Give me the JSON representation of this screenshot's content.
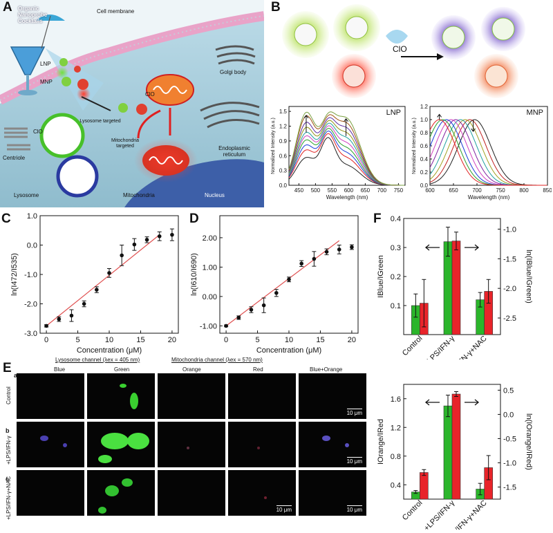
{
  "panels": {
    "A": "A",
    "B": "B",
    "C": "C",
    "D": "D",
    "Ea": "E",
    "Eb": "b",
    "Ec": "c",
    "Ea_sub": "a",
    "F": "F"
  },
  "panel_a": {
    "cocktails": "Organic\nNanoprobe\nCocktails",
    "cell_membrane": "Cell membrane",
    "golgi": "Golgi body",
    "lnp": "LNP",
    "mnp": "MNP",
    "clo1": "ClO",
    "clo2": "ClO",
    "lysosome_targeted": "Lysosome targeted",
    "mito_targeted": "Mitochondria targeted",
    "er": "Endoplasmic reticulum",
    "centriole": "Centriole",
    "lysosome": "Lysosome",
    "mitochondria": "Mitochondria",
    "nucleus": "Nucleus"
  },
  "panel_b": {
    "clo": "ClO"
  },
  "chart_data": [
    {
      "id": "B-LNP",
      "type": "line",
      "title": "LNP",
      "xlabel": "Wavelength (nm)",
      "ylabel": "Normalized Intensity (a.u.)",
      "xlim": [
        420,
        770
      ],
      "ylim": [
        0,
        1.6
      ],
      "xticks": [
        450,
        500,
        550,
        600,
        650,
        700,
        750
      ],
      "yticks": [
        0.0,
        0.3,
        0.6,
        0.9,
        1.2,
        1.5
      ],
      "series": [
        {
          "color": "#1f1f1f",
          "p472": 0.55,
          "p590": 0.4
        },
        {
          "color": "#e02020",
          "p472": 0.7,
          "p590": 0.55
        },
        {
          "color": "#1a3cd8",
          "p472": 0.8,
          "p590": 0.65
        },
        {
          "color": "#2aa02a",
          "p472": 0.9,
          "p590": 0.75
        },
        {
          "color": "#d040c0",
          "p472": 0.98,
          "p590": 0.85
        },
        {
          "color": "#20a0a0",
          "p472": 1.05,
          "p590": 0.95
        },
        {
          "color": "#909010",
          "p472": 1.15,
          "p590": 1.05
        },
        {
          "color": "#5a2aa0",
          "p472": 1.25,
          "p590": 1.15
        },
        {
          "color": "#a05010",
          "p472": 1.38,
          "p590": 1.25
        },
        {
          "color": "#7aa040",
          "p472": 1.45,
          "p590": 1.35
        }
      ]
    },
    {
      "id": "B-MNP",
      "type": "line",
      "title": "MNP",
      "xlabel": "Wavelength (nm)",
      "ylabel": "Normalized Intensity (a.u.)",
      "xlim": [
        600,
        850
      ],
      "ylim": [
        0,
        1.2
      ],
      "xticks": [
        600,
        650,
        700,
        750,
        800,
        850
      ],
      "yticks": [
        0.0,
        0.2,
        0.4,
        0.6,
        0.8,
        1.0,
        1.2
      ],
      "series": [
        {
          "color": "#1f1f1f",
          "peak": 695
        },
        {
          "color": "#c02020",
          "peak": 685
        },
        {
          "color": "#a0a020",
          "peak": 675
        },
        {
          "color": "#20a0a0",
          "peak": 665
        },
        {
          "color": "#8020a0",
          "peak": 655
        },
        {
          "color": "#d040c0",
          "peak": 645
        },
        {
          "color": "#1a3cd8",
          "peak": 635
        },
        {
          "color": "#2aa02a",
          "peak": 627
        },
        {
          "color": "#e02020",
          "peak": 620
        }
      ]
    },
    {
      "id": "C",
      "type": "scatter",
      "xlabel": "Concentration (μM)",
      "ylabel": "ln(I472/I535)",
      "xlim": [
        -1,
        21
      ],
      "ylim": [
        -3.0,
        1.0
      ],
      "xticks": [
        0,
        5,
        10,
        15,
        20
      ],
      "yticks": [
        -3.0,
        -2.0,
        -1.0,
        0.0,
        1.0
      ],
      "ytick_labels": [
        "-3.0",
        "-2.0",
        "-1.0",
        "0.0",
        "1.0"
      ],
      "fit": {
        "x": [
          0,
          18
        ],
        "y": [
          -2.75,
          0.35
        ]
      },
      "points": [
        {
          "x": 0,
          "y": -2.75,
          "err": 0.04
        },
        {
          "x": 2,
          "y": -2.52,
          "err": 0.08
        },
        {
          "x": 4,
          "y": -2.4,
          "err": 0.2
        },
        {
          "x": 6,
          "y": -2.0,
          "err": 0.1
        },
        {
          "x": 8,
          "y": -1.52,
          "err": 0.1
        },
        {
          "x": 10,
          "y": -0.95,
          "err": 0.15
        },
        {
          "x": 12,
          "y": -0.35,
          "err": 0.35
        },
        {
          "x": 14,
          "y": 0.02,
          "err": 0.2
        },
        {
          "x": 16,
          "y": 0.18,
          "err": 0.1
        },
        {
          "x": 18,
          "y": 0.3,
          "err": 0.15
        },
        {
          "x": 20,
          "y": 0.35,
          "err": 0.2
        }
      ]
    },
    {
      "id": "D",
      "type": "scatter",
      "xlabel": "Concentration (μM)",
      "ylabel": "ln(I610/I690)",
      "xlim": [
        -1,
        21
      ],
      "ylim": [
        -1.25,
        2.75
      ],
      "xticks": [
        0,
        5,
        10,
        15,
        20
      ],
      "yticks": [
        -1.0,
        0.0,
        1.0,
        2.0
      ],
      "ytick_labels": [
        "-1.00",
        "0.00",
        "1.00",
        "2.00"
      ],
      "fit": {
        "x": [
          0,
          18
        ],
        "y": [
          -1.0,
          1.9
        ]
      },
      "points": [
        {
          "x": 0,
          "y": -1.0,
          "err": 0.03
        },
        {
          "x": 2,
          "y": -0.72,
          "err": 0.06
        },
        {
          "x": 4,
          "y": -0.45,
          "err": 0.1
        },
        {
          "x": 6,
          "y": -0.3,
          "err": 0.25
        },
        {
          "x": 8,
          "y": 0.12,
          "err": 0.12
        },
        {
          "x": 10,
          "y": 0.58,
          "err": 0.08
        },
        {
          "x": 12,
          "y": 1.12,
          "err": 0.1
        },
        {
          "x": 14,
          "y": 1.28,
          "err": 0.25
        },
        {
          "x": 16,
          "y": 1.52,
          "err": 0.1
        },
        {
          "x": 18,
          "y": 1.6,
          "err": 0.15
        },
        {
          "x": 20,
          "y": 1.68,
          "err": 0.08
        }
      ]
    },
    {
      "id": "F-top",
      "type": "bar",
      "categories": [
        "Control",
        "+LPS/IFN-γ",
        "+LPS/IFN-γ+NAC"
      ],
      "ylabel": "IBlue/IGreen",
      "y2label": "ln(IBlue/IGreen)",
      "ylim": [
        0.0,
        0.4
      ],
      "y2lim": [
        -2.78,
        -0.82
      ],
      "yticks": [
        0.1,
        0.2,
        0.3,
        0.4
      ],
      "y2ticks": [
        -1.0,
        -1.5,
        -2.0,
        -2.5
      ],
      "series": [
        {
          "color": "#2bb52b",
          "axis": "left",
          "values": [
            0.1,
            0.32,
            0.12
          ],
          "err": [
            0.04,
            0.05,
            0.025
          ]
        },
        {
          "color": "#e8242a",
          "axis": "right",
          "values": [
            -2.25,
            -1.2,
            -2.05
          ],
          "err": [
            0.4,
            0.15,
            0.2
          ]
        }
      ]
    },
    {
      "id": "F-bottom",
      "type": "bar",
      "categories": [
        "Control",
        "+LPS/IFN-γ",
        "+LPS/IFN-γ+NAC"
      ],
      "ylabel": "IOrange/IRed",
      "y2label": "ln(IOrange/IRed)",
      "ylim": [
        0.2,
        1.8
      ],
      "y2lim": [
        -1.75,
        0.62
      ],
      "yticks": [
        0.4,
        0.8,
        1.2,
        1.6
      ],
      "y2ticks": [
        0.5,
        0.0,
        -0.5,
        -1.0,
        -1.5
      ],
      "y2tick_labels": [
        "0.5",
        "0.0",
        "-0.5",
        "-1.0",
        "-1.5"
      ],
      "series": [
        {
          "color": "#2bb52b",
          "axis": "left",
          "values": [
            0.3,
            1.5,
            0.34
          ],
          "err": [
            0.02,
            0.15,
            0.08
          ]
        },
        {
          "color": "#e8242a",
          "axis": "right",
          "values": [
            -1.2,
            0.42,
            -1.1
          ],
          "err": [
            0.06,
            0.05,
            0.25
          ]
        }
      ]
    }
  ],
  "panel_e": {
    "lysosome_channel": "Lysosome channel (λex = 405 nm)",
    "mito_channel": "Mitochondria channel (λex = 570 nm)",
    "columns": [
      "Blue",
      "Green",
      "Orange",
      "Red",
      "Blue+Orange"
    ],
    "rows": [
      "Control",
      "+LPS/IFN-γ",
      "+LPS/IFN-γ+NAC"
    ],
    "scalebar": "10 μm"
  }
}
